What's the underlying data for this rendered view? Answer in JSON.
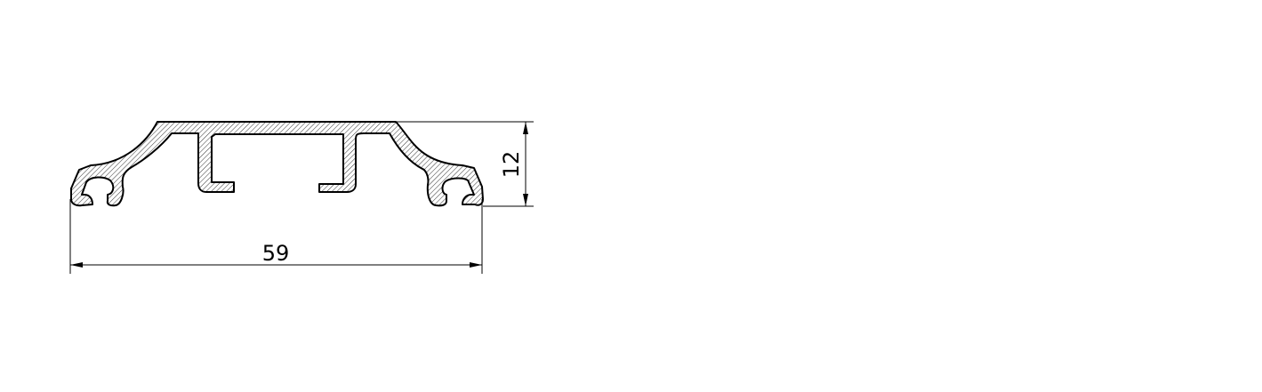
{
  "drawing": {
    "dimensions": {
      "width_label": "59",
      "height_label": "12"
    }
  },
  "colors": {
    "stroke": "#000000",
    "hatch": "#000000",
    "background": "#ffffff"
  }
}
